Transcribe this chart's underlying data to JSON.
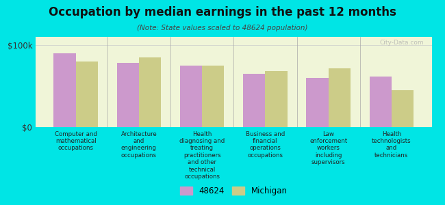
{
  "title": "Occupation by median earnings in the past 12 months",
  "subtitle": "(Note: State values scaled to 48624 population)",
  "background_color": "#00e5e5",
  "plot_bg_color": "#f0f5d8",
  "bar_color_48624": "#cc99cc",
  "bar_color_michigan": "#cccc88",
  "categories": [
    "Computer and\nmathematical\noccupations",
    "Architecture\nand\nengineering\noccupations",
    "Health\ndiagnosing and\ntreating\npractitioners\nand other\ntechnical\noccupations",
    "Business and\nfinancial\noperations\noccupations",
    "Law\nenforcement\nworkers\nincluding\nsupervisors",
    "Health\ntechnologists\nand\ntechnicians"
  ],
  "values_48624": [
    90000,
    78000,
    75000,
    65000,
    60000,
    62000
  ],
  "values_michigan": [
    80000,
    85000,
    75000,
    68000,
    72000,
    45000
  ],
  "ylim": [
    0,
    110000
  ],
  "yticks": [
    0,
    100000
  ],
  "ytick_labels": [
    "$0",
    "$100k"
  ],
  "legend_labels": [
    "48624",
    "Michigan"
  ],
  "watermark": "City-Data.com"
}
